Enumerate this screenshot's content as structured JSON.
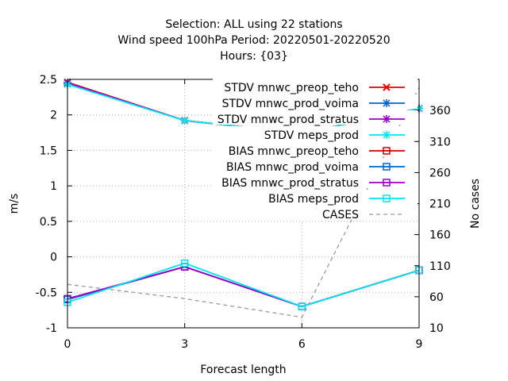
{
  "chart_data": {
    "type": "line",
    "title_lines": [
      "Selection: ALL using     22 stations",
      "Wind speed 100hPa   Period: 20220501-20220520",
      "Hours: {03}"
    ],
    "xlabel": "Forecast length",
    "ylabel": "m/s",
    "y2label": "No cases",
    "x": [
      0,
      3,
      6,
      9
    ],
    "xlim": [
      0,
      9
    ],
    "ylim": [
      -1,
      2.5
    ],
    "y2lim": [
      10,
      410
    ],
    "x_ticks": [
      0,
      3,
      6,
      9
    ],
    "y_ticks": [
      -1,
      -0.5,
      0,
      0.5,
      1,
      1.5,
      2,
      2.5
    ],
    "y2_ticks": [
      10,
      60,
      110,
      160,
      210,
      260,
      310,
      360
    ],
    "grid": true,
    "legend_position": "top-right",
    "series": [
      {
        "name": "STDV mnwc_preop_teho",
        "marker": "x",
        "color": "#ee0000",
        "values": [
          2.46,
          1.92,
          1.74,
          2.09
        ]
      },
      {
        "name": "STDV mnwc_prod_voima",
        "marker": "star",
        "color": "#0066cc",
        "values": [
          2.45,
          1.92,
          1.74,
          2.09
        ]
      },
      {
        "name": "STDV mnwc_prod_stratus",
        "marker": "star",
        "color": "#9900cc",
        "values": [
          2.45,
          1.92,
          1.74,
          2.09
        ]
      },
      {
        "name": "STDV meps_prod",
        "marker": "star",
        "color": "#00e5ee",
        "values": [
          2.43,
          1.92,
          1.74,
          2.09
        ]
      },
      {
        "name": "BIAS mnwc_preop_teho",
        "marker": "square",
        "color": "#cc0000",
        "values": [
          -0.6,
          -0.14,
          -0.7,
          -0.19
        ]
      },
      {
        "name": "BIAS mnwc_prod_voima",
        "marker": "square",
        "color": "#0066cc",
        "values": [
          -0.6,
          -0.14,
          -0.7,
          -0.19
        ]
      },
      {
        "name": "BIAS mnwc_prod_stratus",
        "marker": "square",
        "color": "#9900cc",
        "values": [
          -0.59,
          -0.14,
          -0.7,
          -0.19
        ]
      },
      {
        "name": "BIAS meps_prod",
        "marker": "square",
        "color": "#00e5ee",
        "values": [
          -0.64,
          -0.09,
          -0.7,
          -0.19
        ]
      },
      {
        "name": "CASES",
        "axis": "right",
        "style": "dashed",
        "color": "#999999",
        "values": [
          80,
          57,
          27,
          397
        ]
      }
    ]
  }
}
